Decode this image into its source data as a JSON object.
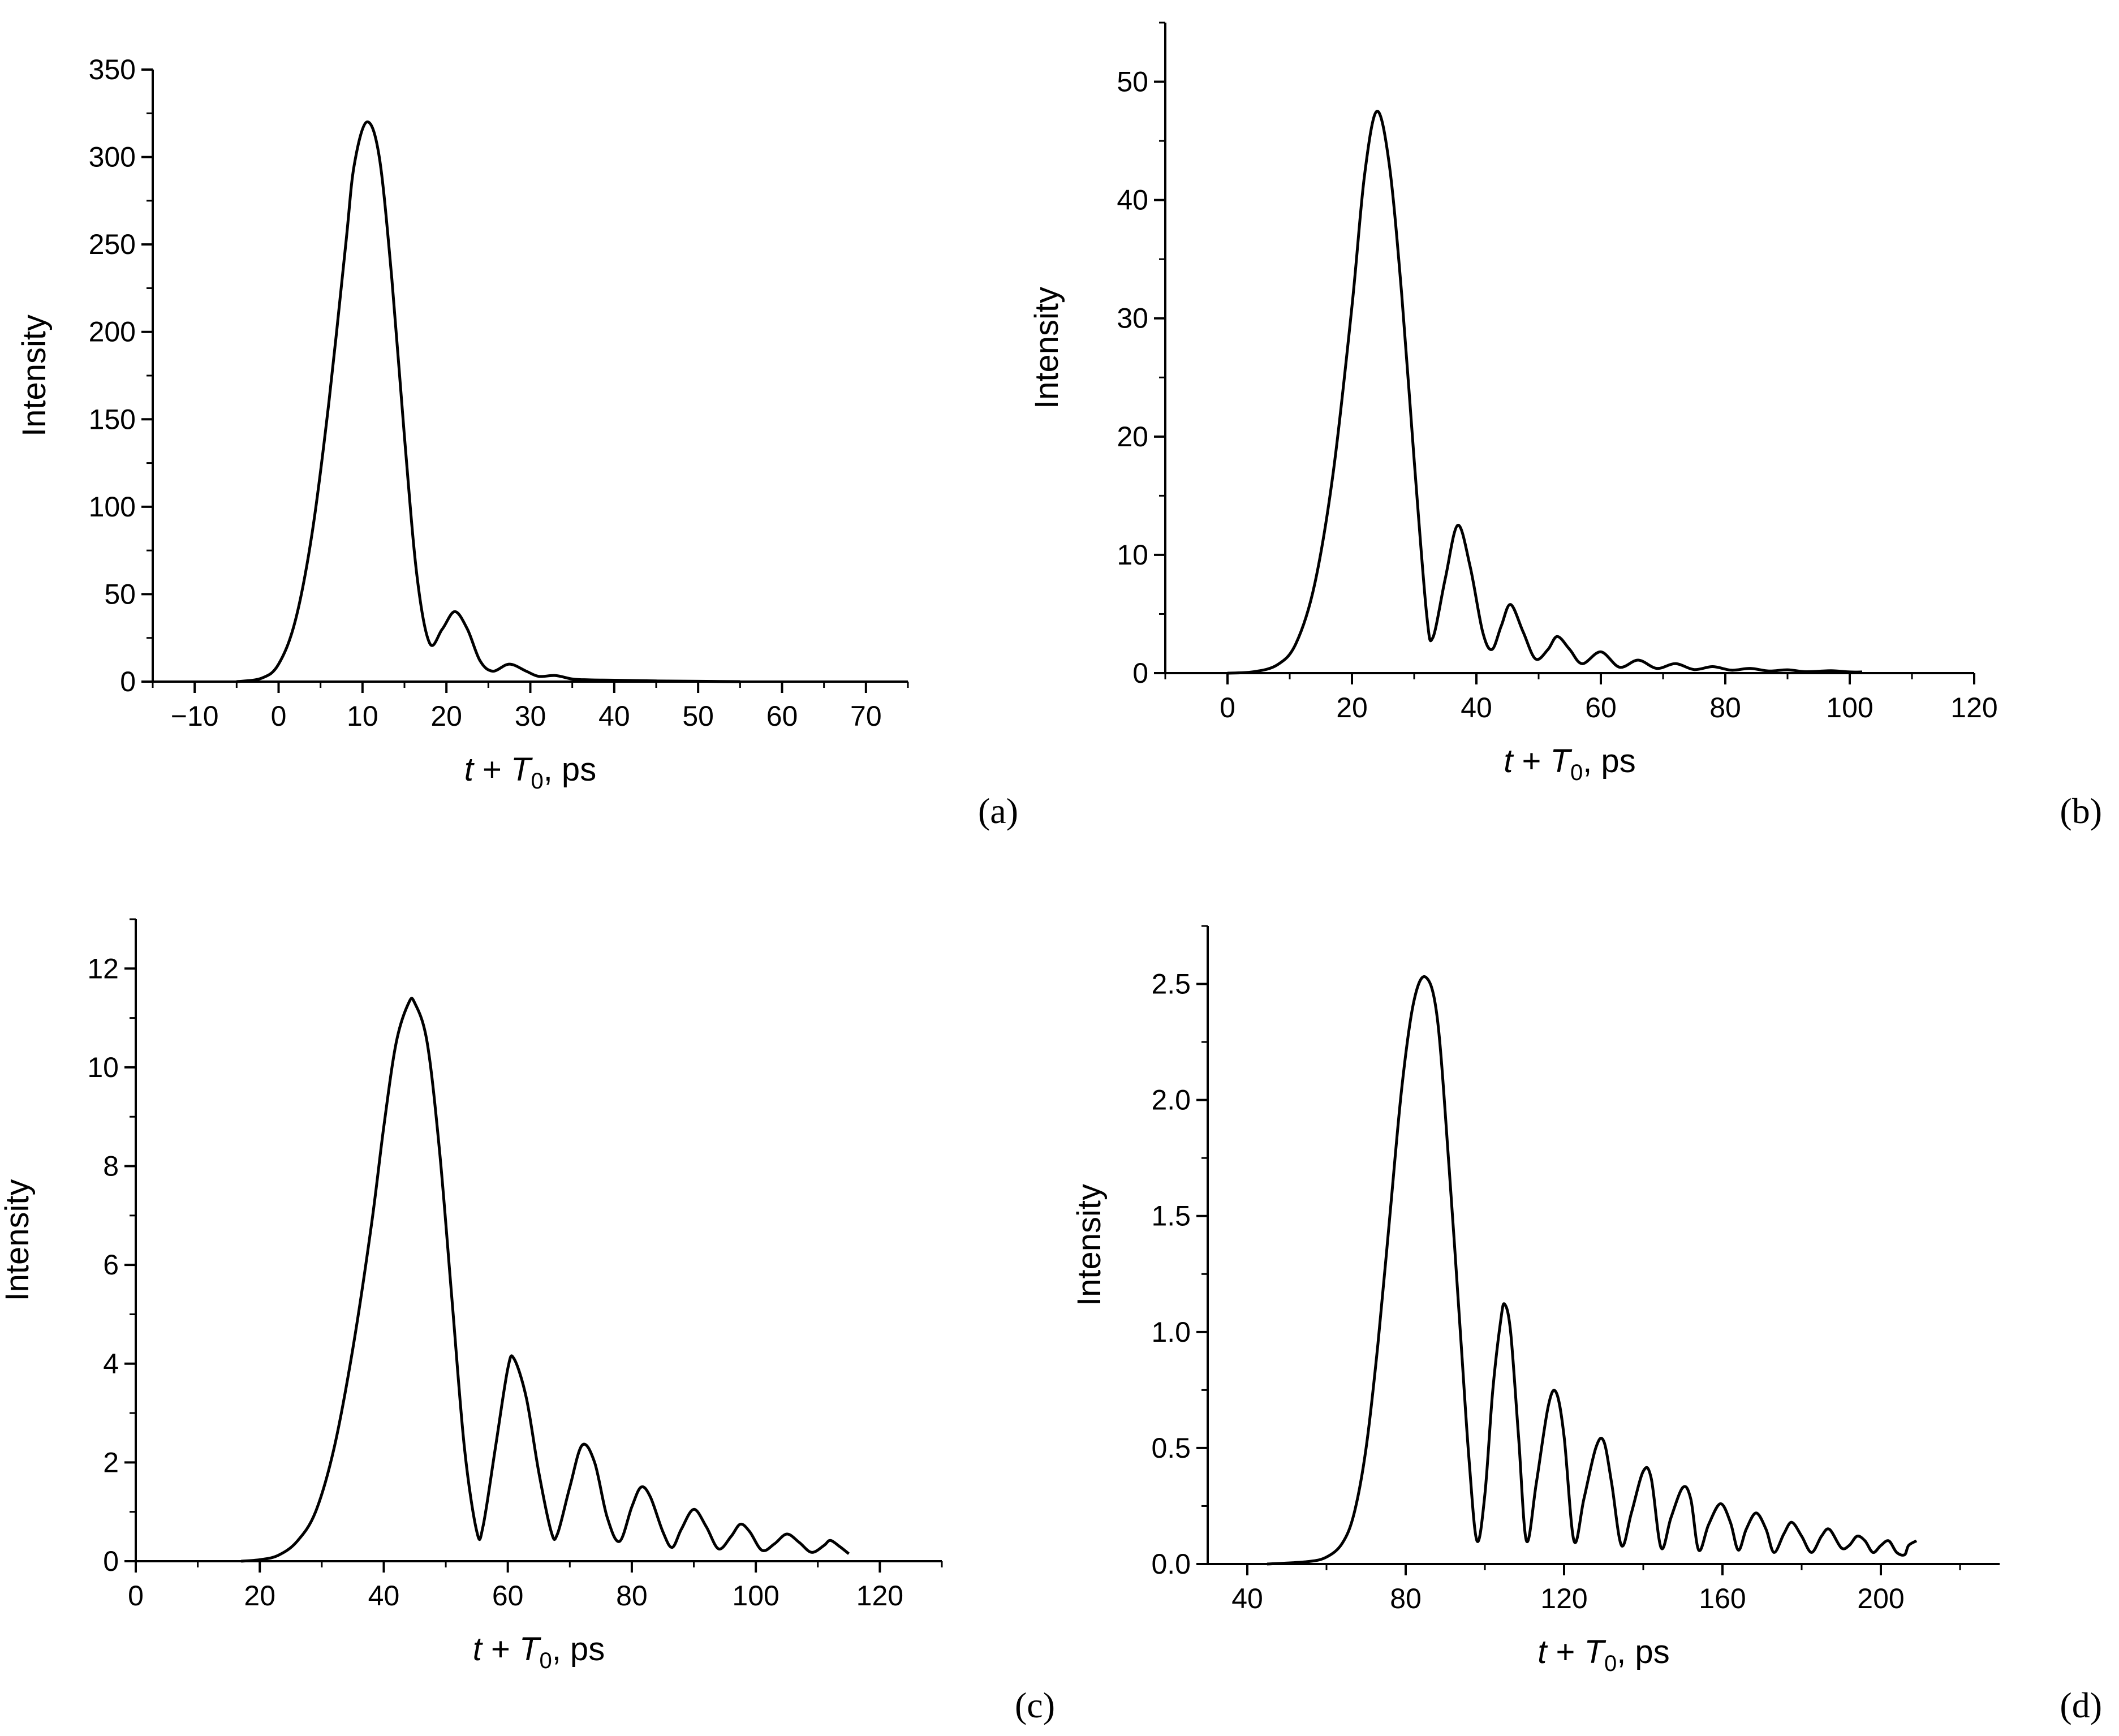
{
  "chart_data": [
    {
      "panel": "(a)",
      "type": "line",
      "xlabel": {
        "var": "t",
        "plus": " + ",
        "sym": "T",
        "sub": "0",
        "unit": ", ps"
      },
      "ylabel": "Intensity",
      "xlim": [
        -15,
        75
      ],
      "ylim": [
        0,
        350
      ],
      "xticks": [
        -10,
        0,
        10,
        20,
        30,
        40,
        50,
        60,
        70
      ],
      "xtick_labels": [
        "−10",
        "0",
        "10",
        "20",
        "30",
        "40",
        "50",
        "60",
        "70"
      ],
      "yticks": [
        0,
        50,
        100,
        150,
        200,
        250,
        300,
        350
      ],
      "ytick_labels": [
        "0",
        "50",
        "100",
        "150",
        "200",
        "250",
        "300",
        "350"
      ],
      "grid": false,
      "series": [
        {
          "points": [
            [
              -5,
              0
            ],
            [
              -2,
              2
            ],
            [
              0,
              10
            ],
            [
              2,
              35
            ],
            [
              4,
              85
            ],
            [
              6,
              160
            ],
            [
              8,
              250
            ],
            [
              9,
              295
            ],
            [
              10.5,
              320
            ],
            [
              12,
              300
            ],
            [
              13.5,
              230
            ],
            [
              15,
              140
            ],
            [
              16.5,
              60
            ],
            [
              18,
              22
            ],
            [
              19.5,
              30
            ],
            [
              21,
              40
            ],
            [
              22.5,
              30
            ],
            [
              24,
              12
            ],
            [
              25.5,
              6
            ],
            [
              27.5,
              10
            ],
            [
              29.5,
              6
            ],
            [
              31,
              3
            ],
            [
              33,
              3.5
            ],
            [
              35,
              1.5
            ],
            [
              37,
              1
            ],
            [
              40,
              0.8
            ],
            [
              45,
              0.4
            ],
            [
              50,
              0.2
            ],
            [
              55,
              0
            ]
          ]
        }
      ]
    },
    {
      "panel": "(b)",
      "type": "line",
      "xlabel": {
        "var": "t",
        "plus": " + ",
        "sym": "T",
        "sub": "0",
        "unit": ", ps"
      },
      "ylabel": "Intensity",
      "xlim": [
        -10,
        120
      ],
      "ylim": [
        0,
        55
      ],
      "xticks": [
        0,
        20,
        40,
        60,
        80,
        100,
        120
      ],
      "xtick_labels": [
        "0",
        "20",
        "40",
        "60",
        "80",
        "100",
        "120"
      ],
      "yticks": [
        0,
        10,
        20,
        30,
        40,
        50
      ],
      "ytick_labels": [
        "0",
        "10",
        "20",
        "30",
        "40",
        "50"
      ],
      "grid": false,
      "series": [
        {
          "points": [
            [
              0,
              0
            ],
            [
              4,
              0.1
            ],
            [
              8,
              0.7
            ],
            [
              11,
              2.5
            ],
            [
              14,
              7.5
            ],
            [
              17,
              17
            ],
            [
              20,
              31
            ],
            [
              22,
              42
            ],
            [
              24,
              47.5
            ],
            [
              26,
              43
            ],
            [
              28,
              32
            ],
            [
              30,
              18
            ],
            [
              32,
              5
            ],
            [
              33,
              3
            ],
            [
              35,
              8
            ],
            [
              37,
              12.5
            ],
            [
              39,
              9
            ],
            [
              41,
              3.5
            ],
            [
              42.5,
              2
            ],
            [
              44,
              4
            ],
            [
              45.5,
              5.8
            ],
            [
              47.5,
              3.5
            ],
            [
              49.5,
              1.2
            ],
            [
              51.5,
              2
            ],
            [
              53,
              3.1
            ],
            [
              55,
              2
            ],
            [
              57,
              0.8
            ],
            [
              60,
              1.8
            ],
            [
              63,
              0.5
            ],
            [
              66,
              1.1
            ],
            [
              69,
              0.4
            ],
            [
              72,
              0.8
            ],
            [
              75,
              0.3
            ],
            [
              78,
              0.55
            ],
            [
              81,
              0.25
            ],
            [
              84,
              0.4
            ],
            [
              87,
              0.18
            ],
            [
              90,
              0.28
            ],
            [
              93,
              0.12
            ],
            [
              97,
              0.2
            ],
            [
              100,
              0.1
            ],
            [
              102,
              0.1
            ]
          ]
        }
      ]
    },
    {
      "panel": "(c)",
      "type": "line",
      "xlabel": {
        "var": "t",
        "plus": " + ",
        "sym": "T",
        "sub": "0",
        "unit": ", ps"
      },
      "ylabel": "Intensity",
      "xlim": [
        0,
        130
      ],
      "ylim": [
        0,
        13
      ],
      "xticks": [
        0,
        20,
        40,
        60,
        80,
        100,
        120
      ],
      "xtick_labels": [
        "0",
        "20",
        "40",
        "60",
        "80",
        "100",
        "120"
      ],
      "yticks": [
        0,
        2,
        4,
        6,
        8,
        10,
        12
      ],
      "ytick_labels": [
        "0",
        "2",
        "4",
        "6",
        "8",
        "10",
        "12"
      ],
      "grid": false,
      "series": [
        {
          "points": [
            [
              17,
              0
            ],
            [
              20,
              0.03
            ],
            [
              23,
              0.12
            ],
            [
              26,
              0.4
            ],
            [
              29,
              1.0
            ],
            [
              32,
              2.3
            ],
            [
              35,
              4.3
            ],
            [
              38,
              6.8
            ],
            [
              40,
              8.8
            ],
            [
              42,
              10.5
            ],
            [
              44,
              11.3
            ],
            [
              45,
              11.3
            ],
            [
              47,
              10.5
            ],
            [
              49,
              8.3
            ],
            [
              51,
              5.3
            ],
            [
              53,
              2.3
            ],
            [
              55,
              0.6
            ],
            [
              56,
              0.7
            ],
            [
              58,
              2.3
            ],
            [
              60,
              3.9
            ],
            [
              61,
              4.1
            ],
            [
              63,
              3.3
            ],
            [
              65,
              1.8
            ],
            [
              67,
              0.6
            ],
            [
              68,
              0.55
            ],
            [
              70,
              1.5
            ],
            [
              72,
              2.35
            ],
            [
              74,
              2.0
            ],
            [
              76,
              0.9
            ],
            [
              78,
              0.4
            ],
            [
              80,
              1.1
            ],
            [
              81.5,
              1.5
            ],
            [
              83,
              1.3
            ],
            [
              85,
              0.6
            ],
            [
              86.5,
              0.28
            ],
            [
              88,
              0.65
            ],
            [
              90,
              1.05
            ],
            [
              92,
              0.7
            ],
            [
              94,
              0.25
            ],
            [
              96,
              0.5
            ],
            [
              97.5,
              0.75
            ],
            [
              99,
              0.6
            ],
            [
              101,
              0.22
            ],
            [
              103,
              0.35
            ],
            [
              105,
              0.55
            ],
            [
              107,
              0.38
            ],
            [
              109,
              0.18
            ],
            [
              111,
              0.32
            ],
            [
              112,
              0.42
            ],
            [
              113.5,
              0.3
            ],
            [
              115,
              0.15
            ]
          ]
        }
      ]
    },
    {
      "panel": "(d)",
      "type": "line",
      "xlabel": {
        "var": "t",
        "plus": " + ",
        "sym": "T",
        "sub": "0",
        "unit": ", ps"
      },
      "ylabel": "Intensity",
      "xlim": [
        30,
        230
      ],
      "ylim": [
        0,
        2.75
      ],
      "xticks": [
        40,
        80,
        120,
        160,
        200
      ],
      "xtick_labels": [
        "40",
        "80",
        "120",
        "160",
        "200"
      ],
      "yticks": [
        0,
        0.5,
        1.0,
        1.5,
        2.0,
        2.5
      ],
      "ytick_labels": [
        "0.0",
        "0.5",
        "1.0",
        "1.5",
        "2.0",
        "2.5"
      ],
      "grid": false,
      "series": [
        {
          "points": [
            [
              45,
              0
            ],
            [
              55,
              0.01
            ],
            [
              60,
              0.03
            ],
            [
              64,
              0.09
            ],
            [
              67,
              0.22
            ],
            [
              70,
              0.5
            ],
            [
              73,
              0.95
            ],
            [
              76,
              1.5
            ],
            [
              79,
              2.05
            ],
            [
              82,
              2.42
            ],
            [
              85,
              2.53
            ],
            [
              88,
              2.35
            ],
            [
              91,
              1.7
            ],
            [
              94,
              0.95
            ],
            [
              96,
              0.45
            ],
            [
              98,
              0.1
            ],
            [
              100,
              0.3
            ],
            [
              102,
              0.75
            ],
            [
              104,
              1.05
            ],
            [
              105,
              1.12
            ],
            [
              106.5,
              1.0
            ],
            [
              108.5,
              0.55
            ],
            [
              110.5,
              0.1
            ],
            [
              113,
              0.35
            ],
            [
              116,
              0.68
            ],
            [
              118,
              0.74
            ],
            [
              120,
              0.55
            ],
            [
              122.5,
              0.1
            ],
            [
              125,
              0.28
            ],
            [
              128,
              0.5
            ],
            [
              130,
              0.53
            ],
            [
              132,
              0.35
            ],
            [
              134.5,
              0.08
            ],
            [
              137,
              0.22
            ],
            [
              140,
              0.4
            ],
            [
              142,
              0.37
            ],
            [
              144.5,
              0.07
            ],
            [
              147,
              0.2
            ],
            [
              150,
              0.33
            ],
            [
              152,
              0.28
            ],
            [
              154,
              0.06
            ],
            [
              156.5,
              0.17
            ],
            [
              159.5,
              0.26
            ],
            [
              162,
              0.18
            ],
            [
              164,
              0.06
            ],
            [
              166,
              0.15
            ],
            [
              168.5,
              0.22
            ],
            [
              171,
              0.15
            ],
            [
              173,
              0.05
            ],
            [
              175.5,
              0.13
            ],
            [
              177.5,
              0.18
            ],
            [
              180,
              0.12
            ],
            [
              182.5,
              0.05
            ],
            [
              185,
              0.12
            ],
            [
              187,
              0.15
            ],
            [
              190,
              0.07
            ],
            [
              192,
              0.08
            ],
            [
              194,
              0.12
            ],
            [
              196,
              0.1
            ],
            [
              198,
              0.05
            ],
            [
              200,
              0.08
            ],
            [
              202,
              0.1
            ],
            [
              204,
              0.05
            ],
            [
              206,
              0.04
            ],
            [
              207,
              0.08
            ],
            [
              209,
              0.1
            ]
          ]
        }
      ]
    }
  ]
}
